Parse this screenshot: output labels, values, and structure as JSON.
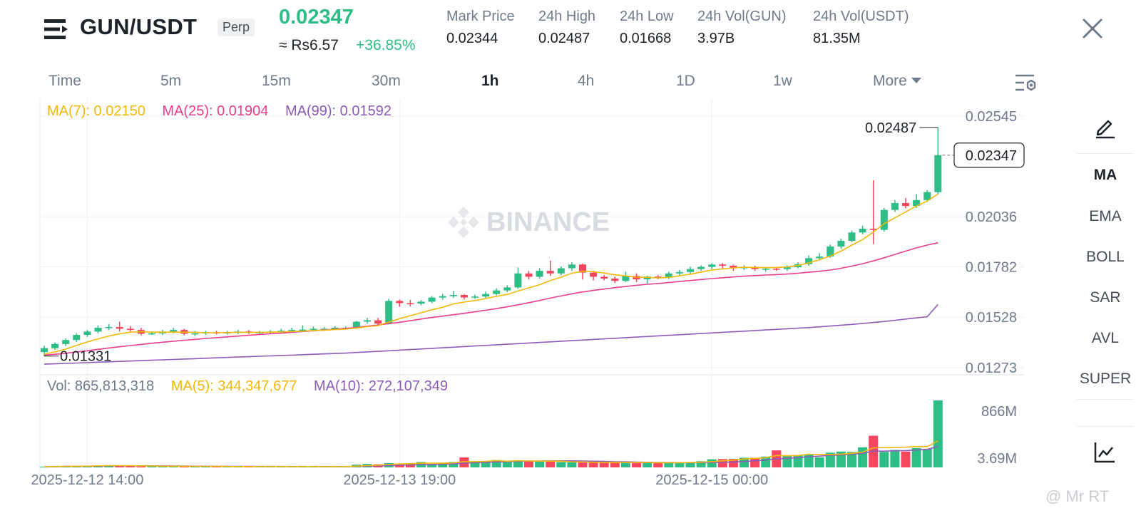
{
  "header": {
    "pair": "GUN/USDT",
    "badge": "Perp",
    "last_price": "0.02347",
    "fiat_price": "≈ Rs6.57",
    "change": "+36.85%",
    "stats": [
      {
        "label": "Mark Price",
        "value": "0.02344"
      },
      {
        "label": "24h High",
        "value": "0.02487"
      },
      {
        "label": "24h Low",
        "value": "0.01668"
      },
      {
        "label": "24h Vol(GUN)",
        "value": "3.97B"
      },
      {
        "label": "24h Vol(USDT)",
        "value": "81.35M"
      }
    ]
  },
  "timeframes": {
    "items": [
      "Time",
      "5m",
      "15m",
      "30m",
      "1h",
      "4h",
      "1D",
      "1w",
      "More"
    ],
    "active": "1h"
  },
  "indicators": {
    "items": [
      "MA",
      "EMA",
      "BOLL",
      "SAR",
      "AVL",
      "SUPER"
    ],
    "active": "MA"
  },
  "colors": {
    "up": "#2ebd85",
    "down": "#f6465d",
    "ma7": "#f0b90b",
    "ma25": "#e83e8c",
    "ma99": "#8e5cb8",
    "muted": "#707a8a"
  },
  "watermark": "BINANCE",
  "corner_mark": "@ Mr RT",
  "chart_data": {
    "type": "candlestick",
    "interval": "1h",
    "price_legend": {
      "ma7": "MA(7): 0.02150",
      "ma25": "MA(25): 0.01904",
      "ma99": "MA(99): 0.01592"
    },
    "volume_legend": {
      "vol": "Vol: 865,813,318",
      "ma5": "MA(5): 344,347,677",
      "ma10": "MA(10): 272,107,349"
    },
    "price_axis_ticks": [
      "0.02545",
      "0.02036",
      "0.01782",
      "0.01528",
      "0.01273"
    ],
    "price_axis_values": [
      0.02545,
      0.02036,
      0.01782,
      0.01528,
      0.01273
    ],
    "price_range": [
      0.0124,
      0.0262
    ],
    "volume_axis_ticks": [
      "866M",
      "3.69M"
    ],
    "volume_max": 866000000,
    "x_labels": [
      "2025-12-12 14:00",
      "2025-12-13 19:00",
      "2025-12-15 00:00"
    ],
    "x_label_candle_index": [
      4,
      33,
      62
    ],
    "current_price_label": "0.02347",
    "high_label": "0.02487",
    "low_label": "0.01331",
    "candles": [
      [
        0.01351,
        0.01371,
        0.01331,
        0.01383
      ],
      [
        0.01371,
        0.01392,
        0.01362,
        0.014
      ],
      [
        0.01392,
        0.01412,
        0.01382,
        0.0142
      ],
      [
        0.01412,
        0.01438,
        0.01402,
        0.01446
      ],
      [
        0.01438,
        0.01455,
        0.01428,
        0.01463
      ],
      [
        0.01455,
        0.01474,
        0.01446,
        0.01486
      ],
      [
        0.01474,
        0.01478,
        0.01463,
        0.01492
      ],
      [
        0.01478,
        0.01469,
        0.01455,
        0.01505
      ],
      [
        0.01469,
        0.01463,
        0.01455,
        0.01482
      ],
      [
        0.01463,
        0.01444,
        0.01436,
        0.01474
      ],
      [
        0.01444,
        0.01446,
        0.01438,
        0.01455
      ],
      [
        0.01446,
        0.01455,
        0.01438,
        0.01463
      ],
      [
        0.01455,
        0.01463,
        0.01446,
        0.01474
      ],
      [
        0.01463,
        0.01444,
        0.01436,
        0.01469
      ],
      [
        0.01444,
        0.01446,
        0.01432,
        0.01459
      ],
      [
        0.01446,
        0.01451,
        0.01438,
        0.01459
      ],
      [
        0.01451,
        0.01449,
        0.0144,
        0.01459
      ],
      [
        0.01449,
        0.01451,
        0.0144,
        0.01459
      ],
      [
        0.01451,
        0.01455,
        0.01442,
        0.01463
      ],
      [
        0.01455,
        0.01451,
        0.01442,
        0.01463
      ],
      [
        0.01451,
        0.01451,
        0.01444,
        0.01459
      ],
      [
        0.01451,
        0.01455,
        0.01444,
        0.01463
      ],
      [
        0.01455,
        0.01459,
        0.01446,
        0.01469
      ],
      [
        0.01459,
        0.01463,
        0.01449,
        0.01474
      ],
      [
        0.01463,
        0.01465,
        0.01455,
        0.01486
      ],
      [
        0.01465,
        0.01469,
        0.01455,
        0.0148
      ],
      [
        0.01469,
        0.01469,
        0.01459,
        0.01478
      ],
      [
        0.01469,
        0.01474,
        0.01463,
        0.01482
      ],
      [
        0.01474,
        0.01474,
        0.01465,
        0.01482
      ],
      [
        0.01474,
        0.01505,
        0.01469,
        0.01509
      ],
      [
        0.01505,
        0.01512,
        0.01495,
        0.01524
      ],
      [
        0.01512,
        0.01495,
        0.01486,
        0.01524
      ],
      [
        0.01495,
        0.0161,
        0.01491,
        0.0162
      ],
      [
        0.0161,
        0.01599,
        0.0158,
        0.01617
      ],
      [
        0.01599,
        0.01596,
        0.01582,
        0.01615
      ],
      [
        0.01596,
        0.01606,
        0.01588,
        0.01614
      ],
      [
        0.01606,
        0.01627,
        0.01599,
        0.01634
      ],
      [
        0.01627,
        0.01634,
        0.01617,
        0.01645
      ],
      [
        0.01634,
        0.0164,
        0.01625,
        0.0166
      ],
      [
        0.0164,
        0.01627,
        0.01617,
        0.01645
      ],
      [
        0.01627,
        0.01632,
        0.0162,
        0.01641
      ],
      [
        0.01632,
        0.01645,
        0.01625,
        0.01656
      ],
      [
        0.01645,
        0.01663,
        0.01638,
        0.01674
      ],
      [
        0.01663,
        0.01678,
        0.01654,
        0.01689
      ],
      [
        0.01678,
        0.01749,
        0.01671,
        0.01779
      ],
      [
        0.01749,
        0.01732,
        0.01718,
        0.01762
      ],
      [
        0.01732,
        0.01762,
        0.01723,
        0.01775
      ],
      [
        0.01762,
        0.01749,
        0.01736,
        0.01814
      ],
      [
        0.01749,
        0.01775,
        0.0174,
        0.01784
      ],
      [
        0.01775,
        0.01794,
        0.01762,
        0.01805
      ],
      [
        0.01794,
        0.01753,
        0.01718,
        0.01799
      ],
      [
        0.01753,
        0.01732,
        0.01714,
        0.01762
      ],
      [
        0.01732,
        0.01723,
        0.01714,
        0.01741
      ],
      [
        0.01723,
        0.01711,
        0.017,
        0.01732
      ],
      [
        0.01711,
        0.01736,
        0.01705,
        0.01758
      ],
      [
        0.01736,
        0.01719,
        0.01705,
        0.01749
      ],
      [
        0.01719,
        0.01733,
        0.01697,
        0.01737
      ],
      [
        0.01733,
        0.01727,
        0.01719,
        0.01741
      ],
      [
        0.01727,
        0.01749,
        0.01719,
        0.01757
      ],
      [
        0.01749,
        0.01756,
        0.0174,
        0.01766
      ],
      [
        0.01756,
        0.01771,
        0.01749,
        0.01782
      ],
      [
        0.01771,
        0.01782,
        0.01762,
        0.0179
      ],
      [
        0.01782,
        0.01794,
        0.01771,
        0.01801
      ],
      [
        0.01794,
        0.01788,
        0.01775,
        0.01801
      ],
      [
        0.01788,
        0.01775,
        0.01762,
        0.01794
      ],
      [
        0.01775,
        0.01782,
        0.01766,
        0.0179
      ],
      [
        0.01782,
        0.01771,
        0.01762,
        0.01788
      ],
      [
        0.01771,
        0.01773,
        0.01758,
        0.01782
      ],
      [
        0.01773,
        0.01771,
        0.01762,
        0.0178
      ],
      [
        0.01771,
        0.0178,
        0.01762,
        0.0179
      ],
      [
        0.0178,
        0.01796,
        0.01775,
        0.01805
      ],
      [
        0.01796,
        0.01826,
        0.01788,
        0.0184
      ],
      [
        0.01826,
        0.01834,
        0.01818,
        0.01852
      ],
      [
        0.01834,
        0.01885,
        0.01828,
        0.01895
      ],
      [
        0.01885,
        0.01914,
        0.01873,
        0.01924
      ],
      [
        0.01914,
        0.01956,
        0.01907,
        0.01965
      ],
      [
        0.01956,
        0.01975,
        0.01947,
        0.0199
      ],
      [
        0.01975,
        0.01969,
        0.01897,
        0.0222
      ],
      [
        0.01969,
        0.0207,
        0.0196,
        0.0208
      ],
      [
        0.0207,
        0.02105,
        0.0206,
        0.0212
      ],
      [
        0.02105,
        0.0209,
        0.02078,
        0.0213
      ],
      [
        0.0209,
        0.0212,
        0.0208,
        0.0215
      ],
      [
        0.0212,
        0.0216,
        0.0211,
        0.0217
      ],
      [
        0.0216,
        0.02347,
        0.0215,
        0.02487
      ]
    ],
    "volumes": [
      8,
      12,
      15,
      18,
      22,
      25,
      28,
      22,
      20,
      16,
      14,
      17,
      19,
      15,
      13,
      15,
      12,
      11,
      10,
      11,
      10,
      10,
      12,
      10,
      12,
      11,
      9,
      10,
      9,
      35,
      45,
      40,
      55,
      48,
      50,
      70,
      45,
      50,
      70,
      130,
      80,
      70,
      95,
      75,
      80,
      90,
      85,
      75,
      70,
      65,
      68,
      60,
      65,
      70,
      62,
      60,
      58,
      65,
      60,
      62,
      70,
      80,
      105,
      108,
      110,
      125,
      125,
      140,
      220,
      145,
      160,
      165,
      130,
      190,
      205,
      200,
      260,
      410,
      200,
      225,
      205,
      250,
      240,
      866
    ],
    "ma7": [
      0.0134,
      0.01352,
      0.01366,
      0.01385,
      0.01402,
      0.01418,
      0.01432,
      0.01444,
      0.01452,
      0.01454,
      0.01452,
      0.01452,
      0.01452,
      0.01452,
      0.01451,
      0.01449,
      0.01449,
      0.0145,
      0.01451,
      0.01451,
      0.01451,
      0.01452,
      0.01453,
      0.01455,
      0.01457,
      0.0146,
      0.01462,
      0.01465,
      0.01467,
      0.01473,
      0.0148,
      0.01485,
      0.01503,
      0.0152,
      0.01535,
      0.0155,
      0.01565,
      0.01578,
      0.01595,
      0.01604,
      0.01612,
      0.01622,
      0.01633,
      0.01643,
      0.0166,
      0.01676,
      0.01692,
      0.01713,
      0.0173,
      0.0175,
      0.0176,
      0.01758,
      0.01751,
      0.01742,
      0.01736,
      0.0173,
      0.01729,
      0.01726,
      0.01729,
      0.01737,
      0.01745,
      0.01756,
      0.01766,
      0.01772,
      0.01777,
      0.0178,
      0.01779,
      0.01778,
      0.01779,
      0.01782,
      0.01789,
      0.01802,
      0.01818,
      0.01837,
      0.01862,
      0.01892,
      0.0192,
      0.01958,
      0.02,
      0.0203,
      0.0206,
      0.0209,
      0.02115,
      0.0215
    ],
    "ma25": [
      0.01335,
      0.0134,
      0.01345,
      0.01352,
      0.01358,
      0.01365,
      0.01372,
      0.01378,
      0.01384,
      0.0139,
      0.01396,
      0.01401,
      0.01406,
      0.01411,
      0.01415,
      0.0142,
      0.01424,
      0.01428,
      0.01432,
      0.01436,
      0.0144,
      0.01444,
      0.01447,
      0.01451,
      0.01455,
      0.01459,
      0.01463,
      0.01467,
      0.01471,
      0.01476,
      0.01482,
      0.01488,
      0.01495,
      0.01502,
      0.0151,
      0.01518,
      0.01526,
      0.01533,
      0.0154,
      0.01547,
      0.01555,
      0.01563,
      0.01571,
      0.0158,
      0.0159,
      0.01601,
      0.01612,
      0.01624,
      0.01635,
      0.01646,
      0.01655,
      0.01663,
      0.0167,
      0.01677,
      0.01683,
      0.01689,
      0.01694,
      0.01698,
      0.01703,
      0.01708,
      0.01713,
      0.01718,
      0.01723,
      0.01727,
      0.01731,
      0.01735,
      0.01738,
      0.01741,
      0.01743,
      0.01746,
      0.0175,
      0.01755,
      0.0176,
      0.01766,
      0.01775,
      0.01786,
      0.01798,
      0.01812,
      0.01828,
      0.01845,
      0.01862,
      0.01878,
      0.01892,
      0.01904
    ],
    "ma99": [
      0.0129,
      0.01292,
      0.01294,
      0.01296,
      0.01298,
      0.013,
      0.01302,
      0.01304,
      0.01306,
      0.01308,
      0.0131,
      0.01312,
      0.01314,
      0.01316,
      0.01318,
      0.0132,
      0.01322,
      0.01324,
      0.01326,
      0.01328,
      0.0133,
      0.01332,
      0.01334,
      0.01336,
      0.01338,
      0.0134,
      0.01342,
      0.01344,
      0.01346,
      0.01349,
      0.01352,
      0.01355,
      0.01358,
      0.01361,
      0.01364,
      0.01367,
      0.0137,
      0.01373,
      0.01376,
      0.01379,
      0.01382,
      0.01385,
      0.01388,
      0.01391,
      0.01394,
      0.01397,
      0.014,
      0.01403,
      0.01406,
      0.01409,
      0.01412,
      0.01415,
      0.01418,
      0.01421,
      0.01424,
      0.01427,
      0.0143,
      0.01433,
      0.01436,
      0.01439,
      0.01442,
      0.01445,
      0.01448,
      0.01451,
      0.01454,
      0.01457,
      0.0146,
      0.01463,
      0.01466,
      0.01469,
      0.01472,
      0.01475,
      0.01479,
      0.01483,
      0.01487,
      0.01491,
      0.01496,
      0.01501,
      0.01506,
      0.01512,
      0.01518,
      0.01524,
      0.0153,
      0.01592
    ],
    "vol_ma5": [
      9,
      11,
      13,
      15,
      17,
      20,
      22,
      23,
      22,
      20,
      18,
      16,
      15,
      15,
      14,
      14,
      13,
      12,
      11,
      11,
      10,
      10,
      11,
      10,
      11,
      11,
      10,
      10,
      10,
      16,
      23,
      29,
      38,
      44,
      48,
      54,
      54,
      54,
      58,
      75,
      75,
      78,
      88,
      80,
      87,
      82,
      81,
      81,
      80,
      72,
      70,
      67,
      65,
      66,
      64,
      63,
      63,
      61,
      61,
      61,
      63,
      67,
      75,
      85,
      95,
      109,
      117,
      125,
      154,
      150,
      153,
      170,
      167,
      167,
      170,
      182,
      197,
      253,
      255,
      259,
      262,
      270,
      268,
      344
    ],
    "vol_ma10": [
      9,
      10,
      11,
      13,
      15,
      17,
      18,
      19,
      20,
      20,
      20,
      19,
      18,
      17,
      16,
      16,
      15,
      14,
      13,
      13,
      12,
      12,
      12,
      11,
      11,
      11,
      11,
      10,
      10,
      12,
      16,
      19,
      24,
      28,
      31,
      35,
      38,
      41,
      46,
      56,
      62,
      66,
      72,
      74,
      79,
      80,
      83,
      84,
      85,
      85,
      83,
      80,
      77,
      74,
      72,
      69,
      66,
      64,
      63,
      62,
      62,
      63,
      64,
      67,
      70,
      78,
      85,
      95,
      110,
      118,
      126,
      138,
      146,
      156,
      162,
      170,
      182,
      210,
      210,
      215,
      217,
      225,
      232,
      272
    ]
  }
}
